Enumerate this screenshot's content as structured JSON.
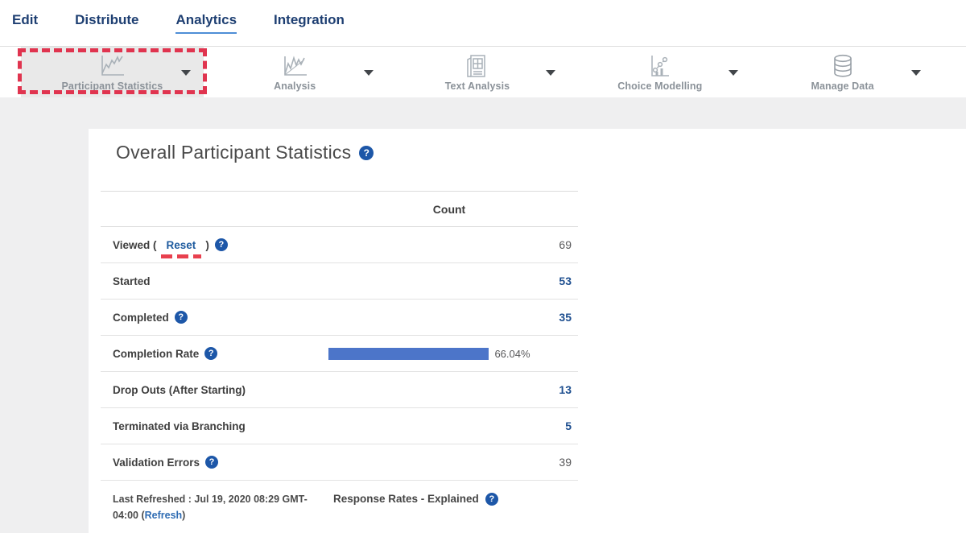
{
  "nav": {
    "items": [
      {
        "label": "Edit"
      },
      {
        "label": "Distribute"
      },
      {
        "label": "Analytics"
      },
      {
        "label": "Integration"
      }
    ]
  },
  "toolbar": {
    "items": [
      {
        "label": "Participant Statistics",
        "icon": "line-chart-icon",
        "active": true
      },
      {
        "label": "Analysis",
        "icon": "area-chart-icon"
      },
      {
        "label": "Text Analysis",
        "icon": "newspaper-icon"
      },
      {
        "label": "Choice Modelling",
        "icon": "scatter-chart-icon"
      },
      {
        "label": "Manage Data",
        "icon": "database-icon"
      }
    ]
  },
  "main": {
    "title": "Overall Participant Statistics",
    "table": {
      "count_header": "Count",
      "rows": [
        {
          "label": "Viewed (",
          "reset_label": "Reset",
          "label_close": ")",
          "value": "69"
        },
        {
          "label": "Started",
          "value": "53"
        },
        {
          "label": "Completed",
          "value": "35"
        },
        {
          "label": "Completion Rate",
          "bar_percent": 66.04,
          "bar_label": "66.04%"
        },
        {
          "label": "Drop Outs (After Starting)",
          "value": "13"
        },
        {
          "label": "Terminated via Branching",
          "value": "5"
        },
        {
          "label": "Validation Errors",
          "value": "39"
        }
      ],
      "footer": {
        "last_refreshed_text": "Last Refreshed : Jul 19, 2020 08:29 GMT-04:00 (",
        "refresh_label": "Refresh",
        "closing_paren": ")",
        "response_rates_label": "Response Rates - Explained"
      }
    }
  },
  "colors": {
    "nav_navy": "#1e3f72",
    "active_underline_blue": "#4e8ed6",
    "annotation_red": "#e0344f",
    "help_icon_blue": "#1d57a8",
    "value_link_blue": "#1d4e8f",
    "progress_bar_blue": "#4c75c9"
  }
}
